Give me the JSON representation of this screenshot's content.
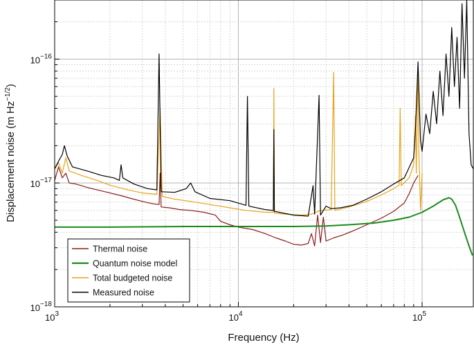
{
  "chart_data": {
    "type": "line",
    "xlabel": "Frequency (Hz)",
    "ylabel": "Displacement noise (m Hz",
    "ylabel_exponent": "−1/2",
    "ylabel_close": ")",
    "x_scale": "log",
    "y_scale": "log",
    "xlim": [
      1000,
      190000
    ],
    "ylim": [
      1e-18,
      3e-16
    ],
    "grid": true,
    "legend_position": "bottom-left",
    "x_tick_labels": [
      {
        "value": 1000,
        "base": "10",
        "exp": "3"
      },
      {
        "value": 10000,
        "base": "10",
        "exp": "4"
      },
      {
        "value": 100000,
        "base": "10",
        "exp": "5"
      }
    ],
    "y_tick_labels": [
      {
        "value": 1e-18,
        "base": "10",
        "exp": "−18"
      },
      {
        "value": 1e-17,
        "base": "10",
        "exp": "−17"
      },
      {
        "value": 1e-16,
        "base": "10",
        "exp": "−16"
      }
    ],
    "series": [
      {
        "name": "Thermal noise",
        "color": "#8b1a1a",
        "points": [
          [
            1000,
            1.05e-17
          ],
          [
            1050,
            1.35e-17
          ],
          [
            1100,
            1.1e-17
          ],
          [
            1150,
            1.2e-17
          ],
          [
            1200,
            1e-17
          ],
          [
            1300,
            9.8e-18
          ],
          [
            1400,
            9.5e-18
          ],
          [
            1500,
            9.2e-18
          ],
          [
            1700,
            8.8e-18
          ],
          [
            2000,
            8.3e-18
          ],
          [
            2300,
            7.9e-18
          ],
          [
            2600,
            7.5e-18
          ],
          [
            3000,
            7.1e-18
          ],
          [
            3400,
            6.8e-18
          ],
          [
            3700,
            6.7e-18
          ],
          [
            3750,
            1.2e-17
          ],
          [
            3800,
            6.4e-18
          ],
          [
            4200,
            6.3e-18
          ],
          [
            4800,
            6.1e-18
          ],
          [
            5500,
            6e-18
          ],
          [
            6500,
            5.8e-18
          ],
          [
            7500,
            5.5e-18
          ],
          [
            8000,
            4.9e-18
          ],
          [
            9000,
            4.6e-18
          ],
          [
            10000,
            4.4e-18
          ],
          [
            12000,
            4.2e-18
          ],
          [
            14000,
            3.9e-18
          ],
          [
            16000,
            3.6e-18
          ],
          [
            18000,
            3.4e-18
          ],
          [
            20000,
            3.2e-18
          ],
          [
            22000,
            3.15e-18
          ],
          [
            24000,
            3.25e-18
          ],
          [
            25000,
            3.9e-18
          ],
          [
            26000,
            3.1e-18
          ],
          [
            27000,
            5.5e-18
          ],
          [
            28000,
            3.3e-18
          ],
          [
            29000,
            5.3e-18
          ],
          [
            30000,
            3.4e-18
          ],
          [
            33000,
            3.6e-18
          ],
          [
            37000,
            3.8e-18
          ],
          [
            42000,
            4.1e-18
          ],
          [
            50000,
            4.6e-18
          ],
          [
            60000,
            5.2e-18
          ],
          [
            70000,
            5.9e-18
          ],
          [
            80000,
            6.9e-18
          ],
          [
            85000,
            8.2e-18
          ],
          [
            90000,
            1e-17
          ],
          [
            95000,
            1.15e-17
          ]
        ]
      },
      {
        "name": "Quantum noise model",
        "color": "#1a8a1a",
        "points": [
          [
            1000,
            4.4e-18
          ],
          [
            2000,
            4.4e-18
          ],
          [
            5000,
            4.45e-18
          ],
          [
            10000,
            4.45e-18
          ],
          [
            20000,
            4.45e-18
          ],
          [
            30000,
            4.5e-18
          ],
          [
            40000,
            4.6e-18
          ],
          [
            55000,
            4.75e-18
          ],
          [
            70000,
            5e-18
          ],
          [
            85000,
            5.3e-18
          ],
          [
            100000,
            5.8e-18
          ],
          [
            115000,
            6.5e-18
          ],
          [
            130000,
            7.3e-18
          ],
          [
            140000,
            7.6e-18
          ],
          [
            145000,
            7.4e-18
          ],
          [
            152000,
            6.6e-18
          ],
          [
            158000,
            5.6e-18
          ],
          [
            165000,
            4.6e-18
          ],
          [
            172000,
            3.8e-18
          ],
          [
            180000,
            3.1e-18
          ],
          [
            188000,
            2.6e-18
          ]
        ]
      },
      {
        "name": "Total budgeted noise",
        "color": "#e8a317",
        "points": [
          [
            1000,
            1.3e-17
          ],
          [
            1050,
            1.45e-17
          ],
          [
            1100,
            1.2e-17
          ],
          [
            1150,
            1.6e-17
          ],
          [
            1200,
            1.25e-17
          ],
          [
            1400,
            1.15e-17
          ],
          [
            1700,
            1.05e-17
          ],
          [
            2000,
            9.6e-18
          ],
          [
            2500,
            8.8e-18
          ],
          [
            3000,
            8.3e-18
          ],
          [
            3600,
            8.1e-18
          ],
          [
            3750,
            4e-17
          ],
          [
            3850,
            7.8e-18
          ],
          [
            4500,
            7.4e-18
          ],
          [
            5500,
            7.1e-18
          ],
          [
            7000,
            6.7e-18
          ],
          [
            9000,
            6.3e-18
          ],
          [
            11000,
            6e-18
          ],
          [
            14000,
            5.8e-18
          ],
          [
            15500,
            5.8e-18
          ],
          [
            15600,
            5.8e-17
          ],
          [
            15700,
            5.7e-18
          ],
          [
            18000,
            5.6e-18
          ],
          [
            22000,
            5.5e-18
          ],
          [
            25000,
            5.6e-18
          ],
          [
            28000,
            6e-18
          ],
          [
            32000,
            6.1e-18
          ],
          [
            33000,
            7.8e-17
          ],
          [
            33500,
            6e-18
          ],
          [
            40000,
            6.4e-18
          ],
          [
            50000,
            7.1e-18
          ],
          [
            60000,
            8e-18
          ],
          [
            70000,
            9e-18
          ],
          [
            75000,
            9.6e-18
          ],
          [
            76000,
            4e-17
          ],
          [
            77000,
            9.5e-18
          ],
          [
            85000,
            1.1e-17
          ],
          [
            90000,
            1.4e-17
          ],
          [
            92000,
            3.5e-17
          ],
          [
            93000,
            1.2e-17
          ],
          [
            95000,
            8.5e-17
          ],
          [
            96000,
            1.8e-17
          ],
          [
            98000,
            6e-18
          ],
          [
            100000,
            1.2e-17
          ]
        ]
      },
      {
        "name": "Measured noise",
        "color": "#000000",
        "points": [
          [
            1000,
            1.3e-17
          ],
          [
            1050,
            1.5e-17
          ],
          [
            1100,
            1.7e-17
          ],
          [
            1130,
            2e-17
          ],
          [
            1170,
            1.65e-17
          ],
          [
            1250,
            1.35e-17
          ],
          [
            1500,
            1.25e-17
          ],
          [
            1800,
            1.15e-17
          ],
          [
            2100,
            1.1e-17
          ],
          [
            2250,
            1.05e-17
          ],
          [
            2300,
            1.4e-17
          ],
          [
            2350,
            1.1e-17
          ],
          [
            2700,
            9.8e-18
          ],
          [
            3200,
            9e-18
          ],
          [
            3600,
            8.8e-18
          ],
          [
            3700,
            1.1e-16
          ],
          [
            3800,
            8.5e-18
          ],
          [
            4500,
            8.4e-18
          ],
          [
            5200,
            9e-18
          ],
          [
            5500,
            1e-17
          ],
          [
            5800,
            8.5e-18
          ],
          [
            7000,
            7.5e-18
          ],
          [
            9000,
            7.2e-18
          ],
          [
            11000,
            6.6e-18
          ],
          [
            11200,
            5e-17
          ],
          [
            11400,
            6.5e-18
          ],
          [
            14000,
            6.1e-18
          ],
          [
            15500,
            6e-18
          ],
          [
            15600,
            2.7e-17
          ],
          [
            15700,
            5.9e-18
          ],
          [
            20000,
            5.5e-18
          ],
          [
            24000,
            5.4e-18
          ],
          [
            25500,
            9.5e-18
          ],
          [
            26000,
            5.6e-18
          ],
          [
            27500,
            5.1e-17
          ],
          [
            28000,
            5.5e-18
          ],
          [
            30000,
            6.5e-18
          ],
          [
            32000,
            6.2e-18
          ],
          [
            36000,
            6.3e-18
          ],
          [
            42000,
            6.6e-18
          ],
          [
            50000,
            7.4e-18
          ],
          [
            60000,
            8.5e-18
          ],
          [
            70000,
            9.8e-18
          ],
          [
            80000,
            1.1e-17
          ],
          [
            90000,
            1.6e-17
          ],
          [
            92000,
            2.7e-17
          ],
          [
            95000,
            9.5e-17
          ],
          [
            98000,
            2.2e-17
          ],
          [
            100000,
            1.8e-17
          ],
          [
            105000,
            3.6e-17
          ],
          [
            110000,
            2.5e-17
          ],
          [
            115000,
            5.5e-17
          ],
          [
            120000,
            3e-17
          ],
          [
            125000,
            8e-17
          ],
          [
            130000,
            3.5e-17
          ],
          [
            135000,
            1.1e-16
          ],
          [
            140000,
            5e-17
          ],
          [
            145000,
            1.8e-16
          ],
          [
            150000,
            6e-17
          ],
          [
            155000,
            1.5e-16
          ],
          [
            160000,
            4e-17
          ],
          [
            165000,
            2.8e-16
          ],
          [
            170000,
            7e-17
          ],
          [
            175000,
            3e-16
          ],
          [
            180000,
            2.5e-17
          ],
          [
            185000,
            1.4e-17
          ],
          [
            190000,
            1.3e-17
          ]
        ]
      }
    ]
  }
}
